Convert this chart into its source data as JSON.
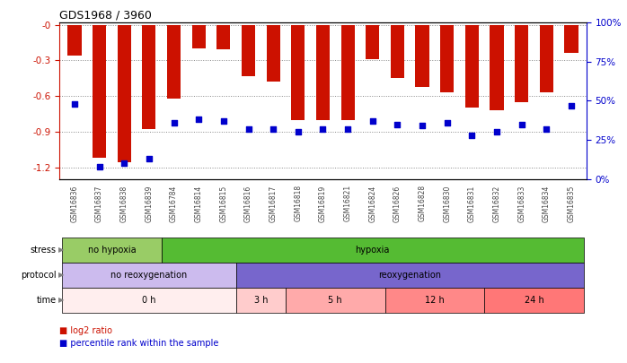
{
  "title": "GDS1968 / 3960",
  "samples": [
    "GSM16836",
    "GSM16837",
    "GSM16838",
    "GSM16839",
    "GSM16784",
    "GSM16814",
    "GSM16815",
    "GSM16816",
    "GSM16817",
    "GSM16818",
    "GSM16819",
    "GSM16821",
    "GSM16824",
    "GSM16826",
    "GSM16828",
    "GSM16830",
    "GSM16831",
    "GSM16832",
    "GSM16833",
    "GSM16834",
    "GSM16835"
  ],
  "log2_ratio": [
    -0.26,
    -1.12,
    -1.16,
    -0.88,
    -0.62,
    -0.2,
    -0.21,
    -0.43,
    -0.48,
    -0.8,
    -0.8,
    -0.8,
    -0.29,
    -0.45,
    -0.52,
    -0.57,
    -0.7,
    -0.72,
    -0.65,
    -0.57,
    -0.24
  ],
  "percentile": [
    48,
    8,
    10,
    13,
    36,
    38,
    37,
    32,
    32,
    30,
    32,
    32,
    37,
    35,
    34,
    36,
    28,
    30,
    35,
    32,
    47
  ],
  "bar_color": "#cc1100",
  "dot_color": "#0000cc",
  "ylim": [
    -1.3,
    0.02
  ],
  "yticks": [
    0.0,
    -0.3,
    -0.6,
    -0.9,
    -1.2
  ],
  "y2ticks": [
    100,
    75,
    50,
    25,
    0
  ],
  "stress_groups": [
    {
      "label": "no hypoxia",
      "start": 0,
      "end": 4,
      "color": "#99cc66"
    },
    {
      "label": "hypoxia",
      "start": 4,
      "end": 21,
      "color": "#55bb33"
    }
  ],
  "protocol_groups": [
    {
      "label": "no reoxygenation",
      "start": 0,
      "end": 7,
      "color": "#ccbbee"
    },
    {
      "label": "reoxygenation",
      "start": 7,
      "end": 21,
      "color": "#7766cc"
    }
  ],
  "time_groups": [
    {
      "label": "0 h",
      "start": 0,
      "end": 7,
      "color": "#ffeeee"
    },
    {
      "label": "3 h",
      "start": 7,
      "end": 9,
      "color": "#ffcccc"
    },
    {
      "label": "5 h",
      "start": 9,
      "end": 13,
      "color": "#ffaaaa"
    },
    {
      "label": "12 h",
      "start": 13,
      "end": 17,
      "color": "#ff8888"
    },
    {
      "label": "24 h",
      "start": 17,
      "end": 21,
      "color": "#ff7777"
    }
  ],
  "left_axis_color": "#cc1100",
  "right_axis_color": "#0000cc",
  "grid_color": "#888888",
  "legend1_text": "log2 ratio",
  "legend2_text": "percentile rank within the sample",
  "annot_labels": [
    "stress",
    "protocol",
    "time"
  ]
}
